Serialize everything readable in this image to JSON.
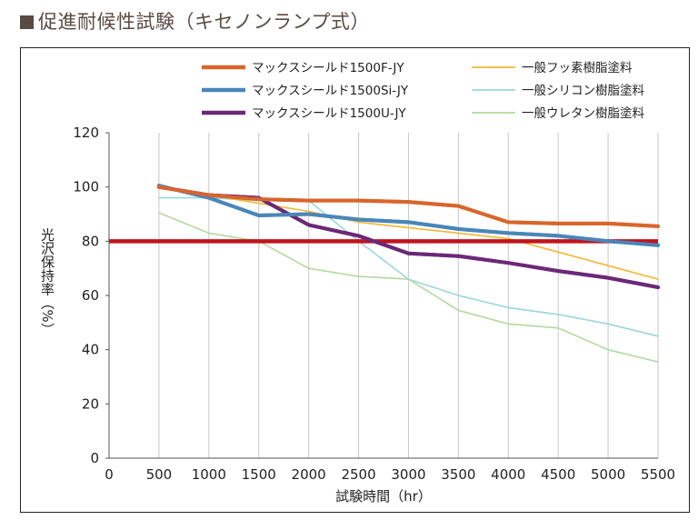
{
  "title": "促進耐候性試験（キセノンランプ式）",
  "chart_data": {
    "type": "line",
    "xlabel": "試験時間（hr）",
    "ylabel": "光沢保持率（%）",
    "xlim": [
      0,
      5500
    ],
    "ylim": [
      0,
      120
    ],
    "x_ticks": [
      "0",
      "500",
      "1000",
      "1500",
      "2000",
      "2500",
      "3000",
      "3500",
      "4000",
      "4500",
      "5000",
      "5500"
    ],
    "y_ticks": [
      "0",
      "20",
      "40",
      "60",
      "80",
      "100",
      "120"
    ],
    "grid": "vertical",
    "legend_position": "top",
    "reference_line": {
      "y": 80,
      "color": "#c0141c"
    },
    "series": [
      {
        "name": "マックスシールド1500F-JY",
        "color": "#d9652b",
        "width": 4,
        "x": [
          500,
          1000,
          1500,
          2000,
          2500,
          3000,
          3500,
          4000,
          4500,
          5000,
          5500
        ],
        "y": [
          100,
          97,
          95.5,
          95,
          95,
          94.5,
          93,
          87,
          86.5,
          86.5,
          85.5
        ]
      },
      {
        "name": "マックスシールド1500Si-JY",
        "color": "#4a86b8",
        "width": 4,
        "x": [
          500,
          1000,
          1500,
          2000,
          2500,
          3000,
          3500,
          4000,
          4500,
          5000,
          5500
        ],
        "y": [
          100.5,
          96,
          89.5,
          90,
          88,
          87,
          84.5,
          83,
          82,
          80,
          78.5
        ]
      },
      {
        "name": "マックスシールド1500U-JY",
        "color": "#6b2878",
        "width": 4,
        "x": [
          500,
          1000,
          1500,
          2000,
          2500,
          3000,
          3500,
          4000,
          4500,
          5000,
          5500
        ],
        "y": [
          100,
          97,
          96,
          86,
          82,
          75.5,
          74.5,
          72,
          69,
          66.5,
          63
        ]
      },
      {
        "name": "一般フッ素樹脂塗料",
        "color": "#f4b731",
        "width": 1.6,
        "x": [
          500,
          1000,
          1500,
          2000,
          2500,
          3000,
          3500,
          4000,
          4500,
          5000,
          5500
        ],
        "y": [
          100,
          97,
          94,
          91,
          87,
          85,
          83,
          81,
          76,
          71,
          66
        ]
      },
      {
        "name": "一般シリコン樹脂塗料",
        "color": "#9bd6dd",
        "width": 1.6,
        "x": [
          500,
          1000,
          1500,
          2000,
          2500,
          3000,
          3500,
          4000,
          4500,
          5000,
          5500
        ],
        "y": [
          96,
          96,
          95,
          95,
          80,
          66,
          60,
          55.5,
          53,
          49.5,
          45
        ]
      },
      {
        "name": "一般ウレタン樹脂塗料",
        "color": "#b4d9a0",
        "width": 1.6,
        "x": [
          500,
          1000,
          1500,
          2000,
          2500,
          3000,
          3500,
          4000,
          4500,
          5000,
          5500
        ],
        "y": [
          90.5,
          83,
          80,
          70,
          67,
          66,
          54.5,
          49.5,
          48,
          40,
          35.5
        ]
      }
    ]
  }
}
